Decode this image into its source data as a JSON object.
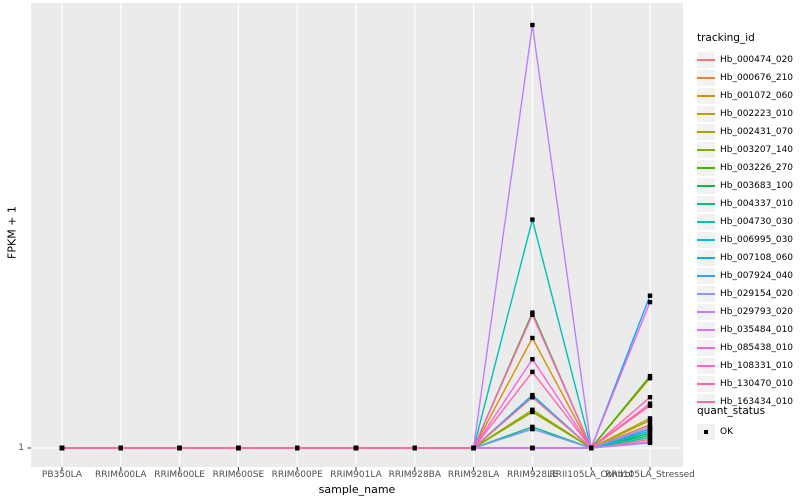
{
  "chart_data": {
    "type": "line",
    "title": "",
    "xlabel": "sample_name",
    "ylabel": "FPKM + 1",
    "x_categories": [
      "PB350LA",
      "RRIM600LA",
      "RRIM600LE",
      "RRIM600SE",
      "RRIM600PE",
      "RRIM901LA",
      "RRIM928BA",
      "RRIM928LA",
      "RRIM928LE",
      "RRII105LA_Control",
      "RRII105LA_Stressed"
    ],
    "y_tick_labels": [
      "1"
    ],
    "y_scale_note": "log-style axis; only the tick '1' is labeled. Series values are heights as a fraction of plot height above the y=1 baseline (0 = FPKM+1 = 1, 1 = tallest peak).",
    "grid": "white major gridlines on light gray panel",
    "marker": "small black square at every data point (quant_status OK)",
    "legend_title": "tracking_id",
    "legend_position": "right",
    "series": [
      {
        "name": "Hb_000474_020",
        "color": "#F8766D",
        "values": [
          0,
          0,
          0,
          0,
          0,
          0,
          0,
          0,
          0,
          0,
          0.02
        ]
      },
      {
        "name": "Hb_000676_210",
        "color": "#EA8331",
        "values": [
          0,
          0,
          0,
          0,
          0,
          0,
          0,
          0,
          0,
          0,
          0.055
        ]
      },
      {
        "name": "Hb_001072_060",
        "color": "#D89000",
        "values": [
          0,
          0,
          0,
          0,
          0,
          0,
          0,
          0,
          0.26,
          0,
          0.165
        ]
      },
      {
        "name": "Hb_002223_010",
        "color": "#C09B00",
        "values": [
          0,
          0,
          0,
          0,
          0,
          0,
          0,
          0,
          0.09,
          0,
          0.07
        ]
      },
      {
        "name": "Hb_002431_070",
        "color": "#A3A500",
        "values": [
          0,
          0,
          0,
          0,
          0,
          0,
          0,
          0,
          0.09,
          0,
          0.065
        ]
      },
      {
        "name": "Hb_003207_140",
        "color": "#7CAE00",
        "values": [
          0,
          0,
          0,
          0,
          0,
          0,
          0,
          0,
          0.085,
          0,
          0.045
        ]
      },
      {
        "name": "Hb_003226_270",
        "color": "#39B600",
        "values": [
          0,
          0,
          0,
          0,
          0,
          0,
          0,
          0,
          0.32,
          0,
          0.17
        ]
      },
      {
        "name": "Hb_003683_100",
        "color": "#00BB4E",
        "values": [
          0,
          0,
          0,
          0,
          0,
          0,
          0,
          0,
          0.045,
          0,
          0.035
        ]
      },
      {
        "name": "Hb_004337_010",
        "color": "#00C087",
        "values": [
          0,
          0,
          0,
          0,
          0,
          0,
          0,
          0,
          0.05,
          0,
          0.03
        ]
      },
      {
        "name": "Hb_004730_030",
        "color": "#00C0B8",
        "values": [
          0,
          0,
          0,
          0,
          0,
          0,
          0,
          0,
          0.54,
          0,
          0.025
        ]
      },
      {
        "name": "Hb_006995_030",
        "color": "#00BAE0",
        "values": [
          0,
          0,
          0,
          0,
          0,
          0,
          0,
          0,
          0.12,
          0,
          0.04
        ]
      },
      {
        "name": "Hb_007108_060",
        "color": "#00ACFC",
        "values": [
          0,
          0,
          0,
          0,
          0,
          0,
          0,
          0,
          0.125,
          0,
          0.36
        ]
      },
      {
        "name": "Hb_007924_040",
        "color": "#35A2FF",
        "values": [
          0,
          0,
          0,
          0,
          0,
          0,
          0,
          0,
          0,
          0,
          0.045
        ]
      },
      {
        "name": "Hb_029154_020",
        "color": "#8B93FF",
        "values": [
          0,
          0,
          0,
          0,
          0,
          0,
          0,
          0,
          0.045,
          0,
          0.012
        ]
      },
      {
        "name": "Hb_029793_020",
        "color": "#BC81FF",
        "values": [
          0,
          0,
          0,
          0,
          0,
          0,
          0,
          0,
          1.0,
          0,
          0.05
        ]
      },
      {
        "name": "Hb_035484_010",
        "color": "#DC71FA",
        "values": [
          0,
          0,
          0,
          0,
          0,
          0,
          0,
          0,
          0,
          0,
          0.015
        ]
      },
      {
        "name": "Hb_085438_010",
        "color": "#F265E8",
        "values": [
          0,
          0,
          0,
          0,
          0,
          0,
          0,
          0,
          0.21,
          0,
          0.345
        ]
      },
      {
        "name": "Hb_108331_010",
        "color": "#FF61CC",
        "values": [
          0,
          0,
          0,
          0,
          0,
          0,
          0,
          0,
          0.315,
          0,
          0.105
        ]
      },
      {
        "name": "Hb_130470_010",
        "color": "#FF65AC",
        "values": [
          0,
          0,
          0,
          0,
          0,
          0,
          0,
          0,
          0.18,
          0,
          0.12
        ]
      },
      {
        "name": "Hb_163434_010",
        "color": "#FF6C91",
        "values": [
          0,
          0,
          0,
          0,
          0,
          0,
          0,
          0,
          0.12,
          0,
          0.1
        ]
      }
    ],
    "quant_legend": {
      "title": "quant_status",
      "items": [
        "OK"
      ]
    },
    "colors": {
      "panel_bg": "#EBEBEB",
      "gridline": "#FFFFFF",
      "tick_mark": "#333333",
      "tick_text": "#4D4D4D",
      "marker": "#000000",
      "legend_key_bg": "#F2F2F2"
    }
  }
}
